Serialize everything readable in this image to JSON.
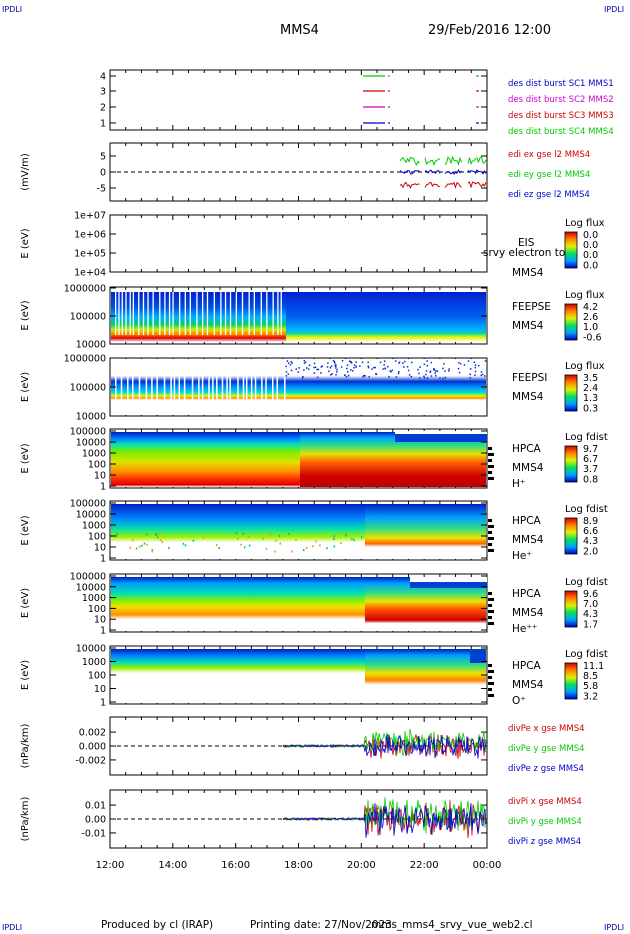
{
  "header": {
    "corner_label": "IPDLI",
    "mission": "MMS4",
    "datetime": "29/Feb/2016 12:00"
  },
  "footer": {
    "produced_by": "Produced by cl (IRAP)",
    "printing_date": "Printing date: 27/Nov/2023",
    "script_name": "mms_mms4_srvy_vue_web2.cl"
  },
  "time_axis": {
    "ticks": [
      "12:00",
      "14:00",
      "16:00",
      "18:00",
      "20:00",
      "22:00",
      "00:00"
    ]
  },
  "palette": {
    "red": "#cc0000",
    "green": "#00cc00",
    "blue": "#0000cc",
    "magenta": "#cc00cc",
    "black": "#000000"
  },
  "chart_data": [
    {
      "type": "line",
      "panel": "burst",
      "ylim": [
        0.5,
        4.5
      ],
      "yticks": [
        "1",
        "2",
        "3",
        "4"
      ],
      "series": [
        {
          "name": "des dist burst SC1 MMS1",
          "color": "#0000cc"
        },
        {
          "name": "des dist burst SC2 MMS2",
          "color": "#cc00cc"
        },
        {
          "name": "des dist burst SC3 MMS3",
          "color": "#cc0000"
        },
        {
          "name": "des dist burst SC4 MMS4",
          "color": "#00cc00"
        }
      ]
    },
    {
      "type": "line",
      "panel": "edi",
      "ylabel": "(mV/m)",
      "ylim": [
        -8,
        8
      ],
      "yticks": [
        "5",
        "0",
        "-5"
      ],
      "series": [
        {
          "name": "edi ex gse l2 MMS4",
          "color": "#cc0000"
        },
        {
          "name": "edi ey gse l2 MMS4",
          "color": "#00cc00"
        },
        {
          "name": "edi ez gse l2 MMS4",
          "color": "#0000cc"
        }
      ]
    },
    {
      "type": "heatmap",
      "panel": "eis",
      "ylabel": "E (eV)",
      "yticks": [
        "1e+07",
        "1e+06",
        "1e+05",
        "1e+04"
      ],
      "labels": [
        "EIS",
        "srvy electron to",
        "MMS4"
      ],
      "colorbar_title": "Log flux",
      "colorbar_ticks": [
        "0.0",
        "0.0",
        "0.0",
        "0.0"
      ]
    },
    {
      "type": "heatmap",
      "panel": "feepse",
      "ylabel": "E (eV)",
      "yticks": [
        "1000000",
        "100000",
        "10000"
      ],
      "labels": [
        "FEEPSE",
        "MMS4"
      ],
      "colorbar_title": "Log flux",
      "colorbar_ticks": [
        "4.2",
        "2.6",
        "1.0",
        "-0.6"
      ]
    },
    {
      "type": "heatmap",
      "panel": "feepsi",
      "ylabel": "E (eV)",
      "yticks": [
        "1000000",
        "100000",
        "10000"
      ],
      "labels": [
        "FEEPSI",
        "MMS4"
      ],
      "colorbar_title": "Log flux",
      "colorbar_ticks": [
        "3.5",
        "2.4",
        "1.3",
        "0.3"
      ]
    },
    {
      "type": "heatmap",
      "panel": "hpca_h",
      "ylabel": "E (eV)",
      "yticks": [
        "100000",
        "10000",
        "1000",
        "100",
        "10",
        "1"
      ],
      "labels": [
        "HPCA",
        "MMS4",
        "H⁺"
      ],
      "colorbar_title": "Log fdist",
      "colorbar_ticks": [
        "9.7",
        "6.7",
        "3.7",
        "0.8"
      ]
    },
    {
      "type": "heatmap",
      "panel": "hpca_he",
      "ylabel": "E (eV)",
      "yticks": [
        "100000",
        "10000",
        "1000",
        "100",
        "10",
        "1"
      ],
      "labels": [
        "HPCA",
        "MMS4",
        "He⁺"
      ],
      "colorbar_title": "Log fdist",
      "colorbar_ticks": [
        "8.9",
        "6.6",
        "4.3",
        "2.0"
      ]
    },
    {
      "type": "heatmap",
      "panel": "hpca_hepp",
      "ylabel": "E (eV)",
      "yticks": [
        "100000",
        "10000",
        "1000",
        "100",
        "10",
        "1"
      ],
      "labels": [
        "HPCA",
        "MMS4",
        "He⁺⁺"
      ],
      "colorbar_title": "Log fdist",
      "colorbar_ticks": [
        "9.6",
        "7.0",
        "4.3",
        "1.7"
      ]
    },
    {
      "type": "heatmap",
      "panel": "hpca_o",
      "ylabel": "E (eV)",
      "yticks": [
        "10000",
        "1000",
        "100",
        "10",
        "1"
      ],
      "labels": [
        "HPCA",
        "MMS4",
        "O⁺"
      ],
      "colorbar_title": "Log fdist",
      "colorbar_ticks": [
        "11.1",
        "8.5",
        "5.8",
        "3.2"
      ]
    },
    {
      "type": "line",
      "panel": "divpe",
      "ylabel": "(nPa/km)",
      "ylim": [
        -0.003,
        0.003
      ],
      "yticks": [
        "0.002",
        "0.000",
        "-0.002"
      ],
      "series": [
        {
          "name": "divPe x gse MMS4",
          "color": "#cc0000"
        },
        {
          "name": "divPe y gse MMS4",
          "color": "#00cc00"
        },
        {
          "name": "divPe z gse MMS4",
          "color": "#0000cc"
        }
      ]
    },
    {
      "type": "line",
      "panel": "divpi",
      "ylabel": "(nPa/km)",
      "ylim": [
        -0.015,
        0.015
      ],
      "yticks": [
        "0.01",
        "0.00",
        "-0.01"
      ],
      "series": [
        {
          "name": "divPi x gse MMS4",
          "color": "#cc0000"
        },
        {
          "name": "divPi y gse MMS4",
          "color": "#00cc00"
        },
        {
          "name": "divPi z gse MMS4",
          "color": "#0000cc"
        }
      ]
    }
  ]
}
